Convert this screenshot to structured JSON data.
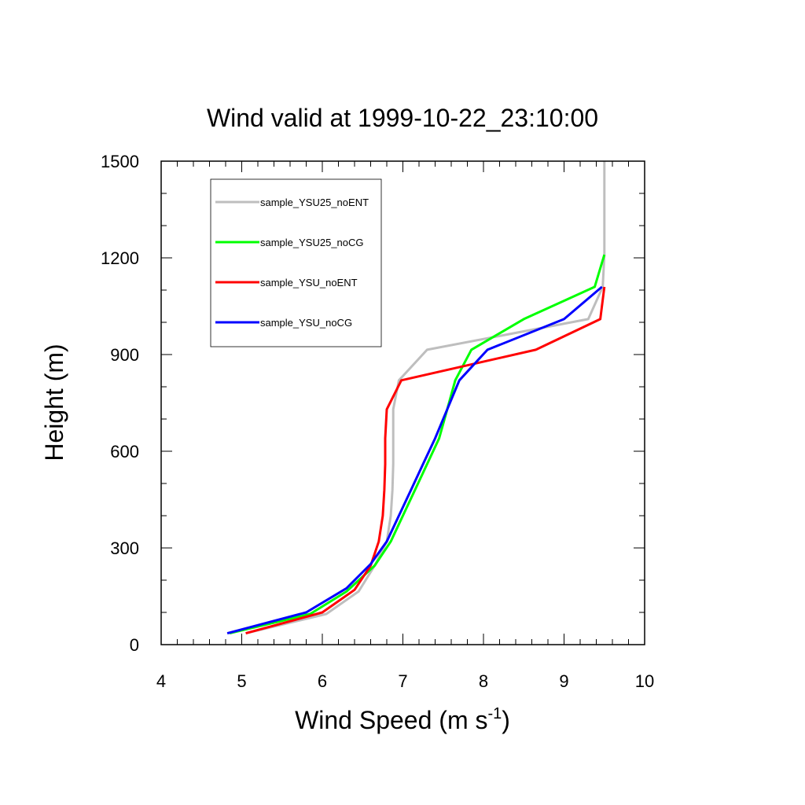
{
  "chart_data": {
    "type": "line",
    "title": "Wind valid at 1999-10-22_23:10:00",
    "xlabel": "Wind Speed (m s",
    "xlabel_sup": "-1",
    "xlabel_end": ")",
    "ylabel": "Height (m)",
    "xlim": [
      4,
      10
    ],
    "ylim": [
      0,
      1500
    ],
    "xticks": [
      4,
      5,
      6,
      7,
      8,
      9,
      10
    ],
    "yticks": [
      0,
      300,
      600,
      900,
      1200,
      1500
    ],
    "legend_position": "top-left",
    "series": [
      {
        "name": "sample_YSU25_noENT",
        "color": "#bebebe",
        "points": [
          [
            5.05,
            35
          ],
          [
            6.05,
            95
          ],
          [
            6.45,
            165
          ],
          [
            6.65,
            245
          ],
          [
            6.8,
            320
          ],
          [
            6.85,
            400
          ],
          [
            6.87,
            480
          ],
          [
            6.88,
            560
          ],
          [
            6.88,
            640
          ],
          [
            6.88,
            730
          ],
          [
            6.95,
            820
          ],
          [
            7.3,
            915
          ],
          [
            9.3,
            1010
          ],
          [
            9.48,
            1110
          ],
          [
            9.5,
            1210
          ],
          [
            9.5,
            1310
          ],
          [
            9.5,
            1410
          ],
          [
            9.5,
            1500
          ]
        ]
      },
      {
        "name": "sample_YSU25_noCG",
        "color": "#00ff00",
        "points": [
          [
            4.85,
            35
          ],
          [
            5.85,
            95
          ],
          [
            6.3,
            165
          ],
          [
            6.65,
            245
          ],
          [
            6.85,
            320
          ],
          [
            7.0,
            400
          ],
          [
            7.15,
            480
          ],
          [
            7.3,
            560
          ],
          [
            7.45,
            640
          ],
          [
            7.55,
            730
          ],
          [
            7.65,
            820
          ],
          [
            7.85,
            915
          ],
          [
            8.5,
            1010
          ],
          [
            9.38,
            1110
          ],
          [
            9.5,
            1210
          ]
        ]
      },
      {
        "name": "sample_YSU_noENT",
        "color": "#ff0000",
        "points": [
          [
            5.05,
            35
          ],
          [
            6.0,
            100
          ],
          [
            6.4,
            170
          ],
          [
            6.6,
            245
          ],
          [
            6.7,
            320
          ],
          [
            6.75,
            400
          ],
          [
            6.77,
            480
          ],
          [
            6.78,
            560
          ],
          [
            6.78,
            640
          ],
          [
            6.8,
            730
          ],
          [
            6.98,
            820
          ],
          [
            8.65,
            915
          ],
          [
            9.45,
            1010
          ],
          [
            9.5,
            1110
          ]
        ]
      },
      {
        "name": "sample_YSU_noCG",
        "color": "#0000ff",
        "points": [
          [
            4.82,
            35
          ],
          [
            5.8,
            100
          ],
          [
            6.3,
            175
          ],
          [
            6.6,
            250
          ],
          [
            6.8,
            320
          ],
          [
            6.95,
            400
          ],
          [
            7.1,
            480
          ],
          [
            7.25,
            560
          ],
          [
            7.4,
            640
          ],
          [
            7.55,
            730
          ],
          [
            7.7,
            820
          ],
          [
            8.05,
            915
          ],
          [
            9.0,
            1010
          ],
          [
            9.47,
            1110
          ]
        ]
      }
    ]
  }
}
